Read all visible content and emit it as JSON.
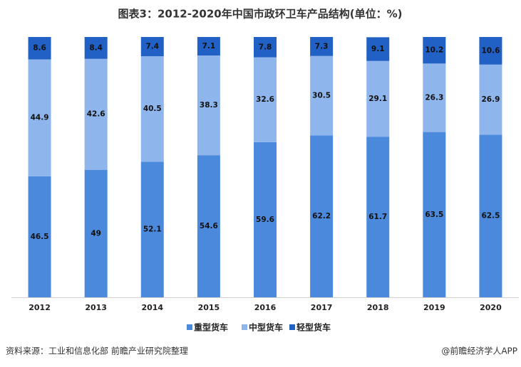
{
  "chart_data": {
    "type": "stacked_bar",
    "title": "图表3：2012-2020年中国市政环卫车产品结构(单位：%)",
    "categories": [
      "2012",
      "2013",
      "2014",
      "2015",
      "2016",
      "2017",
      "2018",
      "2019",
      "2020"
    ],
    "series": [
      {
        "name": "重型货车",
        "color": "#4a89dc",
        "values": [
          46.5,
          49,
          52.1,
          54.6,
          59.6,
          62.2,
          61.7,
          63.5,
          62.5
        ]
      },
      {
        "name": "中型货车",
        "color": "#8fb6ec",
        "values": [
          44.9,
          42.6,
          40.5,
          38.3,
          32.6,
          30.5,
          29.1,
          26.3,
          26.9
        ]
      },
      {
        "name": "轻型货车",
        "color": "#2160c4",
        "values": [
          8.6,
          8.4,
          7.4,
          7.1,
          7.8,
          7.3,
          9.1,
          10.2,
          10.6
        ]
      }
    ],
    "ylim": [
      0,
      100
    ],
    "source": "资料来源：工业和信息化部 前瞻产业研究院整理",
    "credit": "@前瞻经济学人APP"
  }
}
